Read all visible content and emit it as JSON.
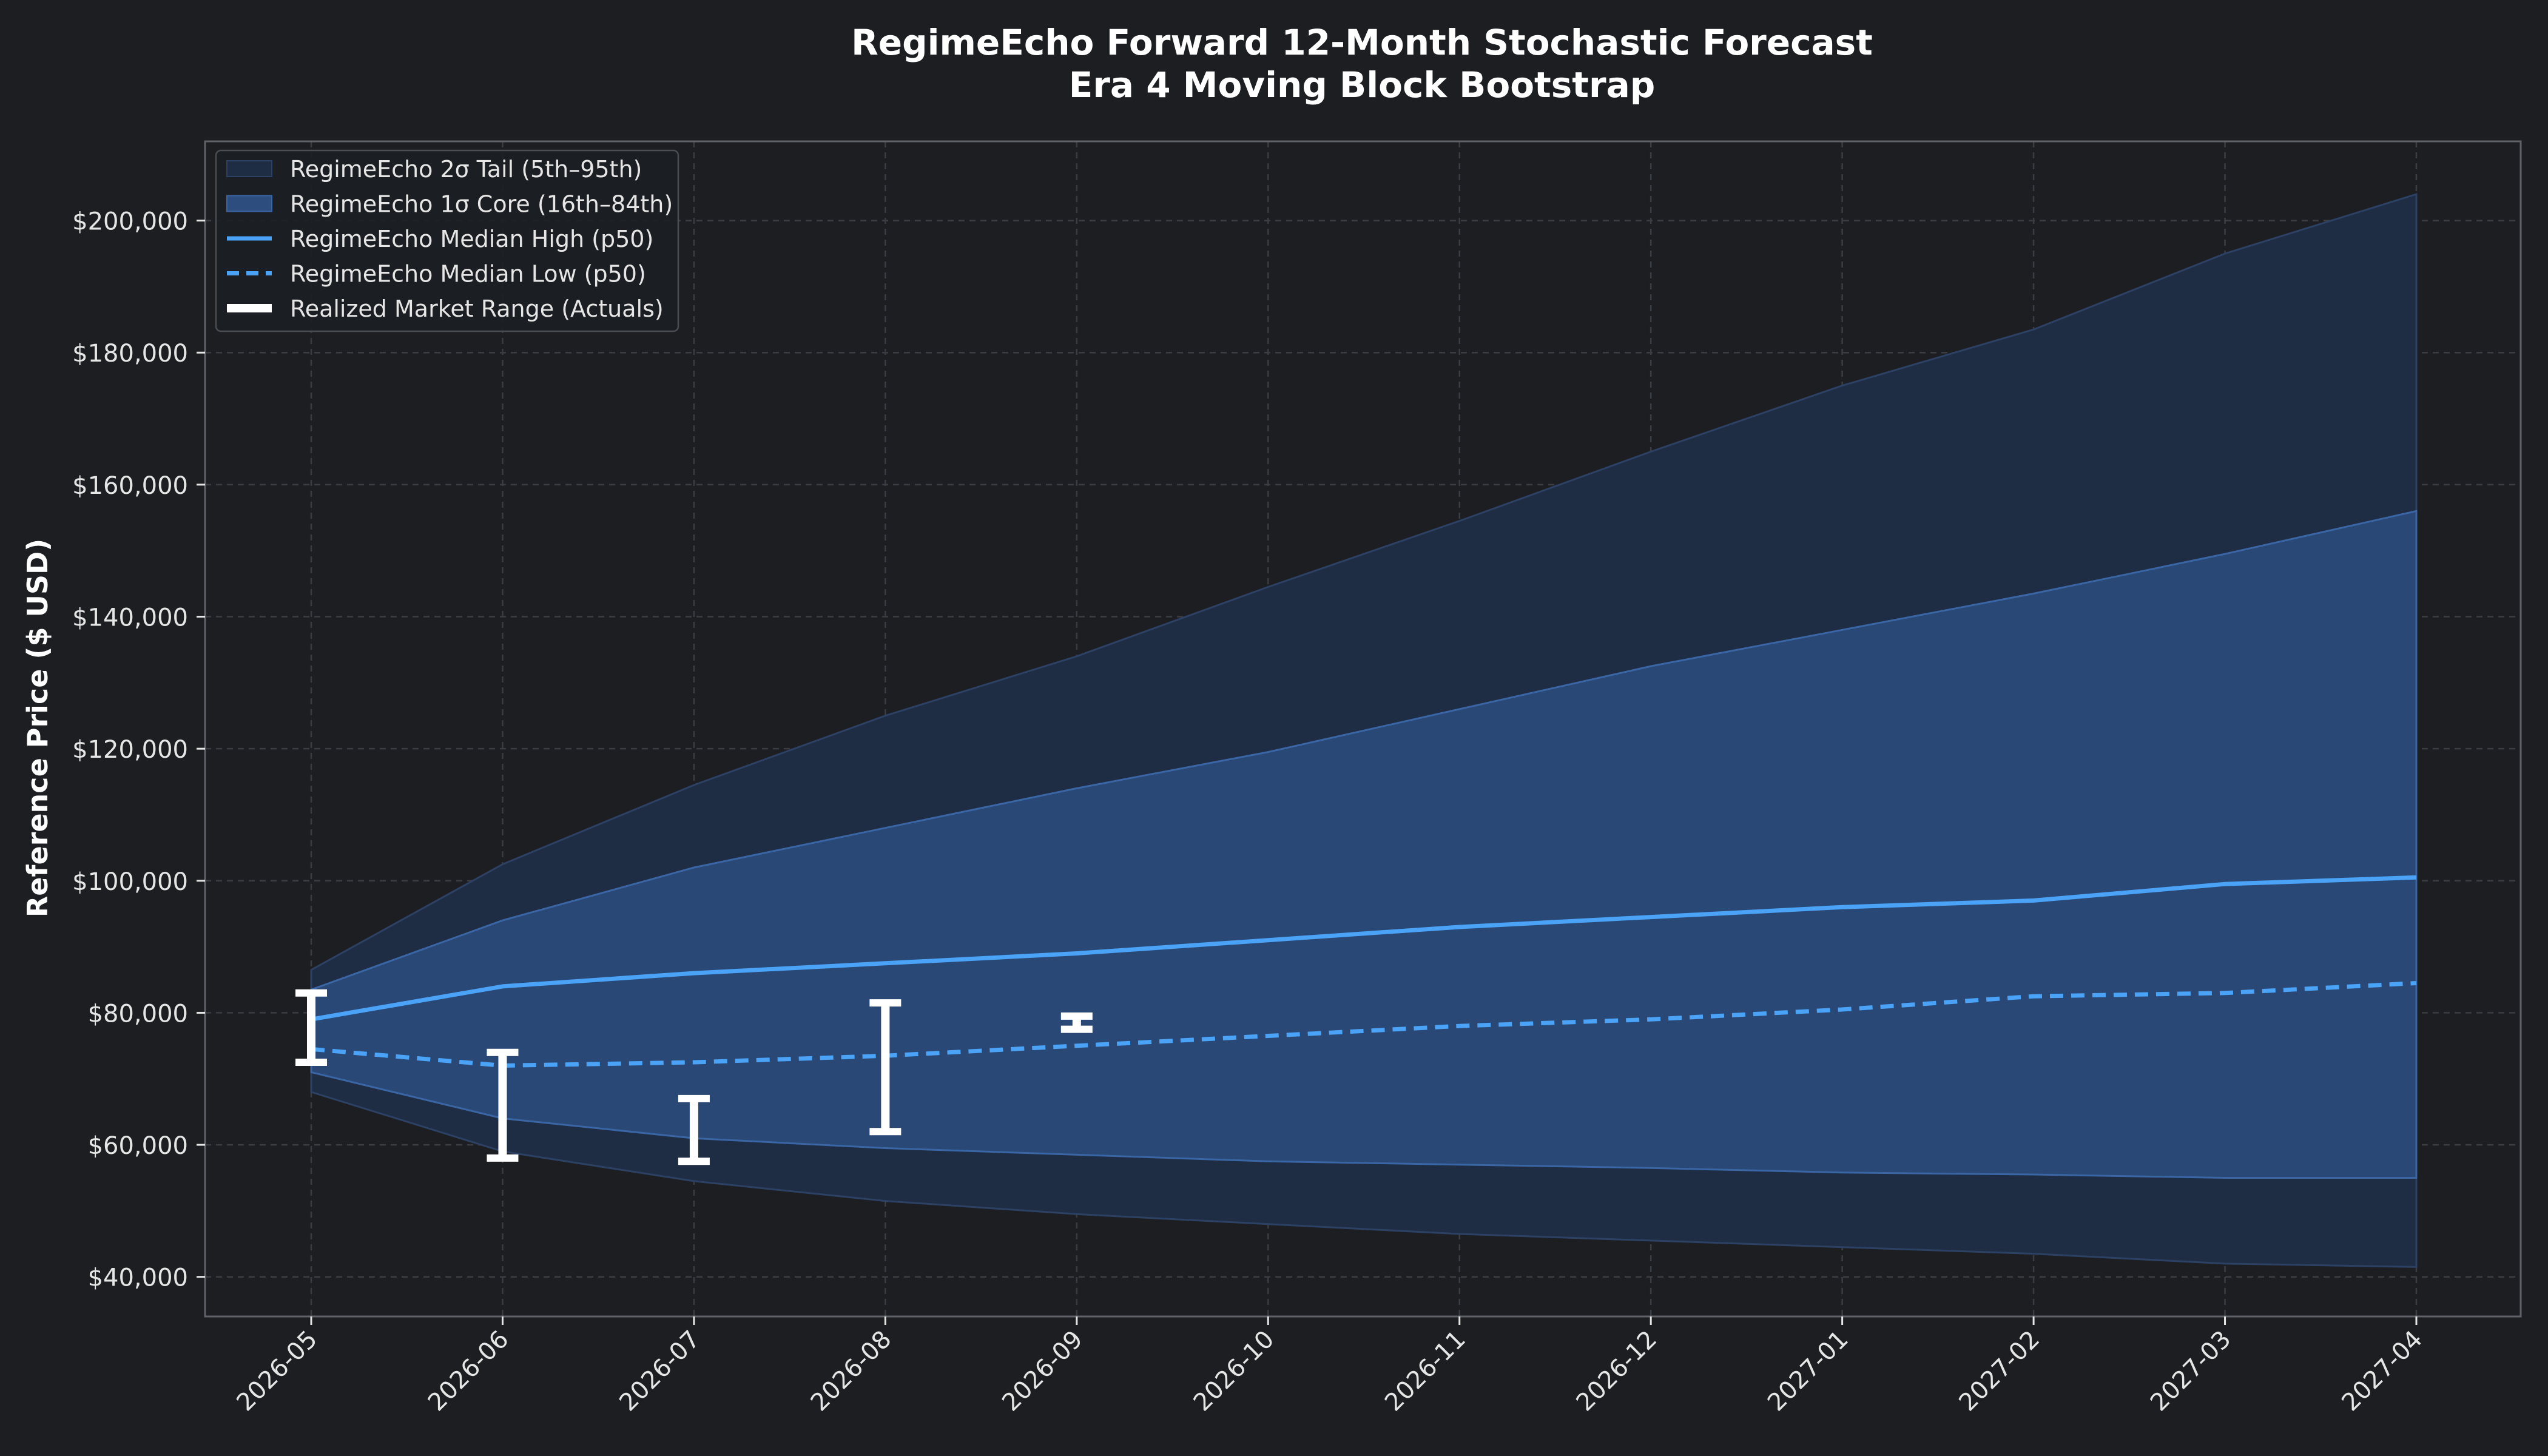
{
  "colors": {
    "background": "#1c1e22",
    "axes_face": "#1c1e22",
    "axes_border": "#5f6368",
    "grid": "#3a3d42",
    "text": "#e6e6e6",
    "title": "#ffffff",
    "tail_band": "#1f2d44",
    "tail_edge": "#2d4164",
    "core_band": "#2c4d7e",
    "core_edge": "#3a66a6",
    "median": "#4aa3f7",
    "actuals": "#ffffff"
  },
  "chart_data": {
    "type": "line",
    "title_line1": "RegimeEcho Forward 12-Month Stochastic Forecast",
    "title_line2": "Era 4 Moving Block Bootstrap",
    "xlabel": "",
    "ylabel": "Reference Price ($ USD)",
    "ylim": [
      34000,
      212000
    ],
    "yticks": [
      40000,
      60000,
      80000,
      100000,
      120000,
      140000,
      160000,
      180000,
      200000
    ],
    "ytick_labels": [
      "$40,000",
      "$60,000",
      "$80,000",
      "$100,000",
      "$120,000",
      "$140,000",
      "$160,000",
      "$180,000",
      "$200,000"
    ],
    "x": [
      "2026-05",
      "2026-06",
      "2026-07",
      "2026-08",
      "2026-09",
      "2026-10",
      "2026-11",
      "2026-12",
      "2027-01",
      "2027-02",
      "2027-03",
      "2027-04"
    ],
    "grid": true,
    "legend_position": "top-left",
    "legend": [
      {
        "label": "RegimeEcho 2σ Tail (5th–95th)",
        "kind": "tail"
      },
      {
        "label": "RegimeEcho 1σ Core (16th–84th)",
        "kind": "core"
      },
      {
        "label": "RegimeEcho Median High (p50)",
        "kind": "median_high"
      },
      {
        "label": "RegimeEcho Median Low (p50)",
        "kind": "median_low"
      },
      {
        "label": "Realized Market Range (Actuals)",
        "kind": "actuals"
      }
    ],
    "tail_upper": [
      86500,
      102500,
      114500,
      125000,
      134000,
      144500,
      154500,
      165000,
      175000,
      183500,
      195000,
      204000
    ],
    "tail_lower": [
      68000,
      59000,
      54500,
      51500,
      49500,
      48000,
      46500,
      45500,
      44500,
      43500,
      42000,
      41500
    ],
    "core_upper": [
      83500,
      94000,
      102000,
      108000,
      114000,
      119500,
      126000,
      132500,
      138000,
      143500,
      149500,
      156000
    ],
    "core_lower": [
      71000,
      64000,
      61000,
      59500,
      58500,
      57500,
      57000,
      56500,
      55800,
      55500,
      55000,
      55000
    ],
    "median_high": [
      79000,
      84000,
      86000,
      87500,
      89000,
      91000,
      93000,
      94500,
      96000,
      97000,
      99500,
      100500
    ],
    "median_low": [
      74500,
      72000,
      72500,
      73500,
      75000,
      76500,
      78000,
      79000,
      80500,
      82500,
      83000,
      84500
    ],
    "actuals": [
      {
        "x": "2026-05",
        "low": 72500,
        "high": 83000
      },
      {
        "x": "2026-06",
        "low": 58000,
        "high": 74000
      },
      {
        "x": "2026-07",
        "low": 57500,
        "high": 67000
      },
      {
        "x": "2026-08",
        "low": 62000,
        "high": 81500
      },
      {
        "x": "2026-09",
        "low": 77500,
        "high": 79500
      }
    ]
  }
}
